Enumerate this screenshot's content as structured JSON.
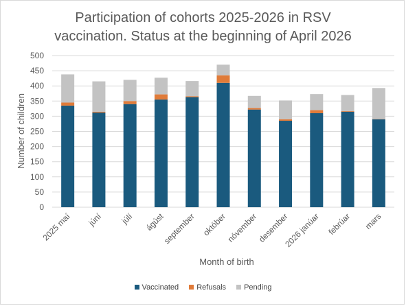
{
  "chart_data": {
    "type": "bar",
    "stacked": true,
    "title_lines": [
      "Participation of cohorts 2025-2026 in RSV",
      "vaccination. Status at the beginning of April 2026"
    ],
    "xlabel": "Month of birth",
    "ylabel": "Number of children",
    "ylim": [
      0,
      500
    ],
    "yticks": [
      0,
      50,
      100,
      150,
      200,
      250,
      300,
      350,
      400,
      450,
      500
    ],
    "grid": true,
    "legend_position": "bottom",
    "categories": [
      "2025 maí",
      "júní",
      "júlí",
      "ágúst",
      "september",
      "október",
      "nóvember",
      "desember",
      "2026 janúar",
      "febrúar",
      "mars"
    ],
    "series": [
      {
        "name": "Vaccinated",
        "color": "#1a5a7e",
        "values": [
          335,
          312,
          340,
          355,
          363,
          410,
          322,
          285,
          310,
          315,
          290
        ]
      },
      {
        "name": "Refusals",
        "color": "#e07b39",
        "values": [
          10,
          3,
          10,
          17,
          3,
          25,
          5,
          5,
          10,
          2,
          1
        ]
      },
      {
        "name": "Pending",
        "color": "#c3c3c3",
        "values": [
          93,
          100,
          70,
          55,
          50,
          35,
          40,
          62,
          53,
          53,
          102
        ]
      }
    ]
  }
}
